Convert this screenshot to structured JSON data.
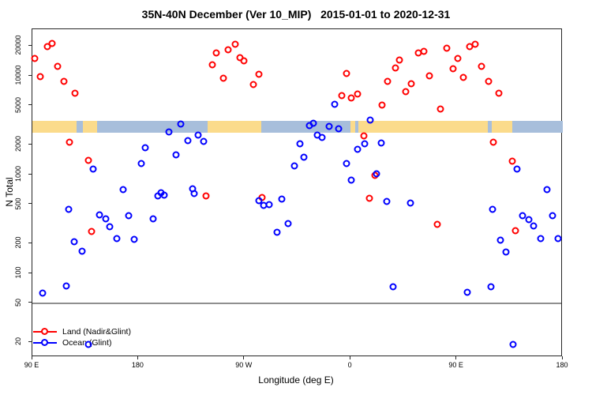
{
  "chart_data": {
    "type": "scatter",
    "title": "35N-40N December (Ver 10_MIP)   2015-01-01 to 2020-12-31",
    "xlabel": "Longitude (deg E)",
    "ylabel": "N Total",
    "y_scale": "log10",
    "ylim": [
      14,
      30000
    ],
    "axis_note": "x positions stored as degrees east unwrapped from 90 to 540; displayed longitude = a-360 when a>180",
    "x_axis": {
      "ticks": [
        {
          "a": 90,
          "label": "90 E"
        },
        {
          "a": 180,
          "label": "180"
        },
        {
          "a": 270,
          "label": "90 W"
        },
        {
          "a": 360,
          "label": "0"
        },
        {
          "a": 450,
          "label": "90 E"
        },
        {
          "a": 540,
          "label": "180"
        }
      ]
    },
    "y_axis": {
      "ticks": [
        {
          "n": 20000,
          "label": "20000"
        },
        {
          "n": 10000,
          "label": "10000"
        },
        {
          "n": 5000,
          "label": "5000"
        },
        {
          "n": 2000,
          "label": "2000"
        },
        {
          "n": 1000,
          "label": "1000"
        },
        {
          "n": 500,
          "label": "500"
        },
        {
          "n": 200,
          "label": "200"
        },
        {
          "n": 100,
          "label": "100"
        },
        {
          "n": 50,
          "label": "50"
        },
        {
          "n": 20,
          "label": "20"
        }
      ]
    },
    "reference_line_n": 50,
    "reference_line_color": "#8f8f8f",
    "land_ocean_band": {
      "n_range": [
        2650,
        3500
      ],
      "land_color": "#FBDB8B",
      "ocean_color": "#A7BEDB",
      "segments": [
        {
          "a0": 90,
          "a1": 127.5,
          "t": "land"
        },
        {
          "a0": 127.5,
          "a1": 133,
          "t": "ocean"
        },
        {
          "a0": 133,
          "a1": 145,
          "t": "land"
        },
        {
          "a0": 145,
          "a1": 238.5,
          "t": "ocean"
        },
        {
          "a0": 238.5,
          "a1": 284,
          "t": "land"
        },
        {
          "a0": 284,
          "a1": 360,
          "t": "ocean"
        },
        {
          "a0": 360,
          "a1": 364,
          "t": "land"
        },
        {
          "a0": 364,
          "a1": 366.5,
          "t": "ocean"
        },
        {
          "a0": 366.5,
          "a1": 476.5,
          "t": "land"
        },
        {
          "a0": 476.5,
          "a1": 480,
          "t": "ocean"
        },
        {
          "a0": 480,
          "a1": 497,
          "t": "land"
        },
        {
          "a0": 497,
          "a1": 540,
          "t": "ocean"
        }
      ]
    },
    "legend": [
      {
        "label": "Land (Nadir&Glint)",
        "color": "#FF0000"
      },
      {
        "label": "Ocean (Glint)",
        "color": "#0000FF"
      }
    ],
    "series": [
      {
        "name": "Land (Nadir&Glint)",
        "color": "#FF0000",
        "points": [
          [
            102.7,
            19800
          ],
          [
            106.7,
            21300
          ],
          [
            92,
            15000
          ],
          [
            111.4,
            12500
          ],
          [
            96.7,
            9800
          ],
          [
            116.8,
            8800
          ],
          [
            126.2,
            6700
          ],
          [
            121.5,
            2130
          ],
          [
            137.5,
            1390
          ],
          [
            140.2,
            265
          ],
          [
            237.3,
            608
          ],
          [
            284.9,
            586
          ],
          [
            246,
            17100
          ],
          [
            256.1,
            18400
          ],
          [
            262.1,
            20900
          ],
          [
            266.1,
            15300
          ],
          [
            269.4,
            14200
          ],
          [
            242.7,
            12900
          ],
          [
            252,
            9500
          ],
          [
            282.2,
            10400
          ],
          [
            277.5,
            8200
          ],
          [
            380.6,
            980
          ],
          [
            356.5,
            10600
          ],
          [
            352.5,
            6300
          ],
          [
            360.5,
            5970
          ],
          [
            365.9,
            6550
          ],
          [
            386.6,
            5060
          ],
          [
            391.3,
            8790
          ],
          [
            398,
            12000
          ],
          [
            401.3,
            14450
          ],
          [
            406.7,
            6920
          ],
          [
            411.4,
            8320
          ],
          [
            417.4,
            17100
          ],
          [
            422.1,
            17700
          ],
          [
            426.8,
            10000
          ],
          [
            436.1,
            4610
          ],
          [
            441.5,
            19050
          ],
          [
            446.8,
            11800
          ],
          [
            450.9,
            15000
          ],
          [
            455.5,
            9640
          ],
          [
            460.9,
            19800
          ],
          [
            465.6,
            20900
          ],
          [
            471,
            12470
          ],
          [
            477,
            8790
          ],
          [
            485.7,
            6670
          ],
          [
            481,
            2130
          ],
          [
            497.1,
            1370
          ],
          [
            371.3,
            2470
          ],
          [
            375.9,
            575
          ],
          [
            433.4,
            313
          ],
          [
            499.8,
            270
          ]
        ]
      },
      {
        "name": "Ocean (Glint)",
        "color": "#0000FF",
        "points": [
          [
            215.9,
            3250
          ],
          [
            205.8,
            2700
          ],
          [
            221.9,
            2210
          ],
          [
            230.6,
            2510
          ],
          [
            235.3,
            2170
          ],
          [
            185.7,
            1870
          ],
          [
            211.9,
            1585
          ],
          [
            182.4,
            1290
          ],
          [
            141.6,
            1140
          ],
          [
            167,
            705
          ],
          [
            199.1,
            655
          ],
          [
            225.9,
            718
          ],
          [
            312.3,
            1220
          ],
          [
            317,
            2050
          ],
          [
            346.4,
            5150
          ],
          [
            325.1,
            3130
          ],
          [
            328.4,
            3310
          ],
          [
            341.8,
            3080
          ],
          [
            349.8,
            2910
          ],
          [
            331.8,
            2510
          ],
          [
            335.8,
            2380
          ],
          [
            376.6,
            3560
          ],
          [
            371.9,
            2050
          ],
          [
            365.9,
            1800
          ],
          [
            386,
            2090
          ],
          [
            320.3,
            1500
          ],
          [
            356.5,
            1295
          ],
          [
            381.9,
            1020
          ],
          [
            360.5,
            880
          ],
          [
            390.6,
            535
          ],
          [
            410.7,
            515
          ],
          [
            501.1,
            1140
          ],
          [
            526.5,
            705
          ],
          [
            120.8,
            445
          ],
          [
            146.9,
            390
          ],
          [
            152.3,
            356
          ],
          [
            155.6,
            296
          ],
          [
            125.5,
            209
          ],
          [
            132.2,
            167
          ],
          [
            161.6,
            225
          ],
          [
            171.7,
            384
          ],
          [
            176.4,
            221
          ],
          [
            192.4,
            356
          ],
          [
            196.5,
            608
          ],
          [
            201.8,
            620
          ],
          [
            227.3,
            643
          ],
          [
            282.2,
            545
          ],
          [
            286.2,
            488
          ],
          [
            290.9,
            497
          ],
          [
            301.6,
            565
          ],
          [
            307,
            319
          ],
          [
            297.6,
            261
          ],
          [
            118.8,
            74
          ],
          [
            98.7,
            63
          ],
          [
            137.5,
            19
          ],
          [
            480.3,
            445
          ],
          [
            505.8,
            384
          ],
          [
            511.2,
            350
          ],
          [
            515.2,
            302
          ],
          [
            531.3,
            384
          ],
          [
            521.2,
            225
          ],
          [
            536,
            225
          ],
          [
            487,
            217
          ],
          [
            491.7,
            164
          ],
          [
            396,
            73
          ],
          [
            458.9,
            64
          ],
          [
            479,
            73
          ],
          [
            497.8,
            19
          ]
        ]
      }
    ]
  }
}
